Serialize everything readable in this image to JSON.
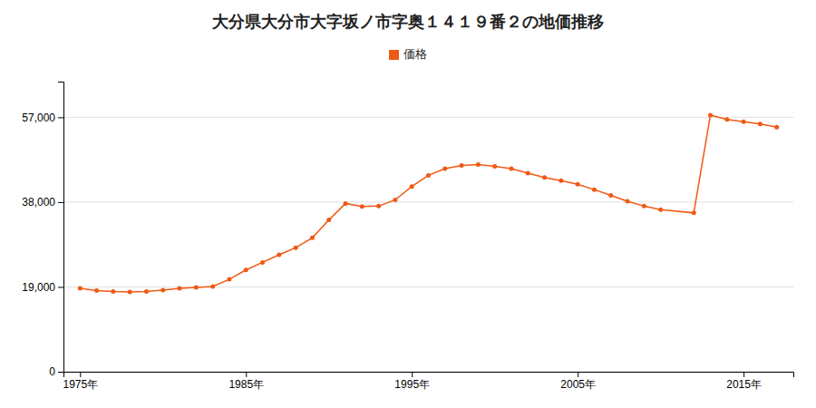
{
  "chart_data": {
    "type": "line",
    "title": "大分県大分市大字坂ノ市字奥１４１９番２の地価推移",
    "x": [
      1975,
      1976,
      1977,
      1978,
      1979,
      1980,
      1981,
      1982,
      1983,
      1984,
      1985,
      1986,
      1987,
      1988,
      1989,
      1990,
      1991,
      1992,
      1993,
      1994,
      1995,
      1996,
      1997,
      1998,
      1999,
      2000,
      2001,
      2002,
      2003,
      2004,
      2005,
      2006,
      2007,
      2008,
      2009,
      2010,
      2012,
      2013,
      2014,
      2015,
      2016,
      2017
    ],
    "series": [
      {
        "name": "価格",
        "color": "#f05914",
        "marker": "circle",
        "values": [
          18700,
          18200,
          18000,
          17900,
          18000,
          18300,
          18700,
          18900,
          19100,
          20700,
          22800,
          24500,
          26200,
          27800,
          30000,
          34000,
          37700,
          37000,
          37100,
          38500,
          41500,
          44000,
          45500,
          46200,
          46400,
          46000,
          45500,
          44500,
          43500,
          42800,
          42000,
          40800,
          39500,
          38200,
          37100,
          36300,
          35600,
          57500,
          56500,
          56000,
          55500,
          54800
        ]
      }
    ],
    "xlim": [
      1974,
      2018
    ],
    "xticks": [
      {
        "value": 1975,
        "label": "1975年"
      },
      {
        "value": 1985,
        "label": "1985年"
      },
      {
        "value": 1995,
        "label": "1995年"
      },
      {
        "value": 2005,
        "label": "2005年"
      },
      {
        "value": 2015,
        "label": "2015年"
      }
    ],
    "ylim": [
      0,
      65000
    ],
    "yticks": [
      0,
      {
        "value": 19000,
        "label": "19,000"
      },
      {
        "value": 38000,
        "label": "38,000"
      },
      {
        "value": 57000,
        "label": "57,000"
      }
    ],
    "grid": "y",
    "legend": "top"
  }
}
